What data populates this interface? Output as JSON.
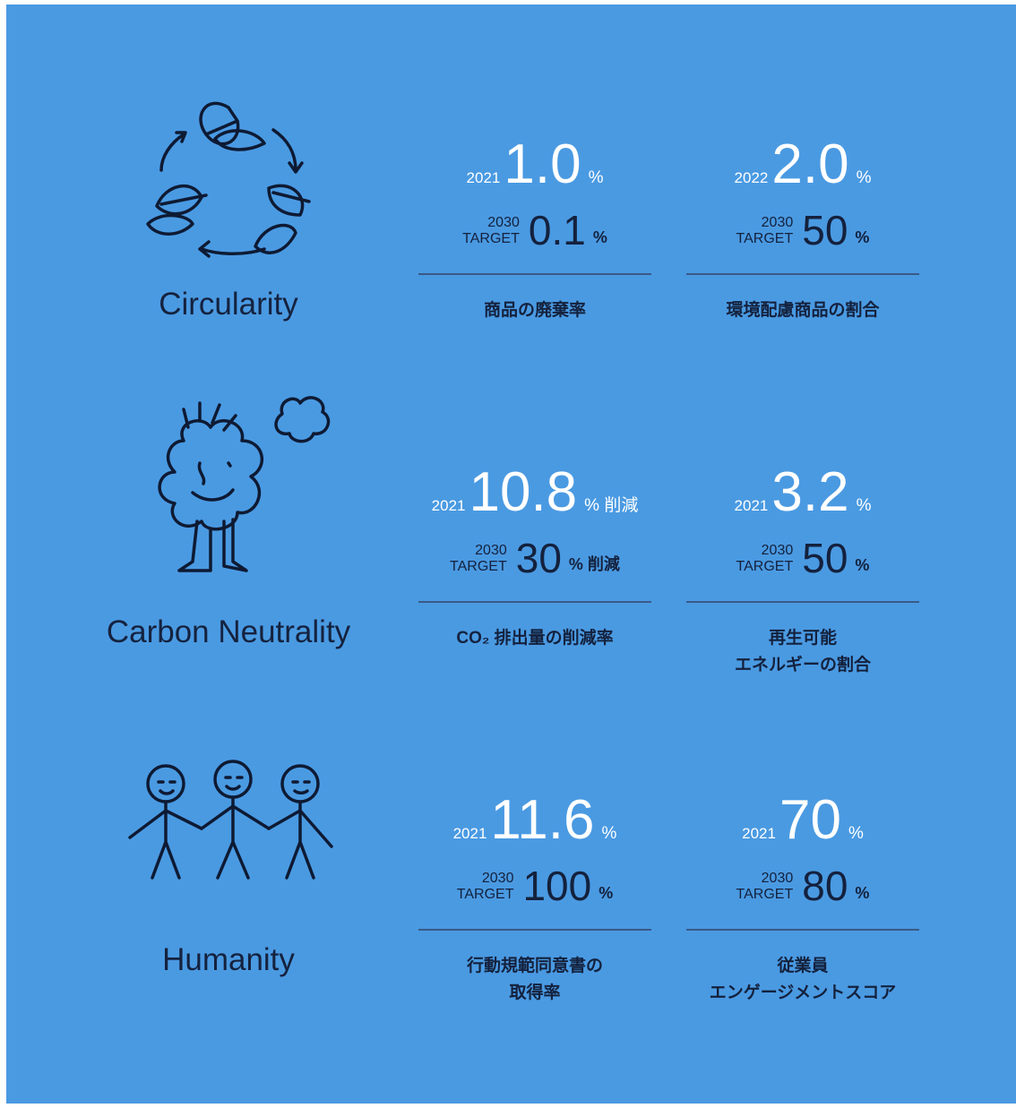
{
  "sections": [
    {
      "label": "Circularity",
      "metrics": [
        {
          "year": "2021",
          "value": "1.0",
          "unit": "%",
          "target_year": "2030",
          "target_label": "TARGET",
          "target_value": "0.1",
          "target_unit": "%",
          "description": [
            "商品の廃棄率"
          ]
        },
        {
          "year": "2022",
          "value": "2.0",
          "unit": "%",
          "target_year": "2030",
          "target_label": "TARGET",
          "target_value": "50",
          "target_unit": "%",
          "description": [
            "環境配慮商品の割合"
          ]
        }
      ]
    },
    {
      "label": "Carbon Neutrality",
      "metrics": [
        {
          "year": "2021",
          "value": "10.8",
          "unit": "% 削減",
          "target_year": "2030",
          "target_label": "TARGET",
          "target_value": "30",
          "target_unit": "% 削減",
          "description": [
            "CO₂ 排出量の削減率"
          ]
        },
        {
          "year": "2021",
          "value": "3.2",
          "unit": "%",
          "target_year": "2030",
          "target_label": "TARGET",
          "target_value": "50",
          "target_unit": "%",
          "description": [
            "再生可能",
            "エネルギーの割合"
          ]
        }
      ]
    },
    {
      "label": "Humanity",
      "metrics": [
        {
          "year": "2021",
          "value": "11.6",
          "unit": "%",
          "target_year": "2030",
          "target_label": "TARGET",
          "target_value": "100",
          "target_unit": "%",
          "description": [
            "行動規範同意書の",
            "取得率"
          ]
        },
        {
          "year": "2021",
          "value": "70",
          "unit": "%",
          "target_year": "2030",
          "target_label": "TARGET",
          "target_value": "80",
          "target_unit": "%",
          "description": [
            "従業員",
            "エンゲージメントスコア"
          ]
        }
      ]
    }
  ]
}
